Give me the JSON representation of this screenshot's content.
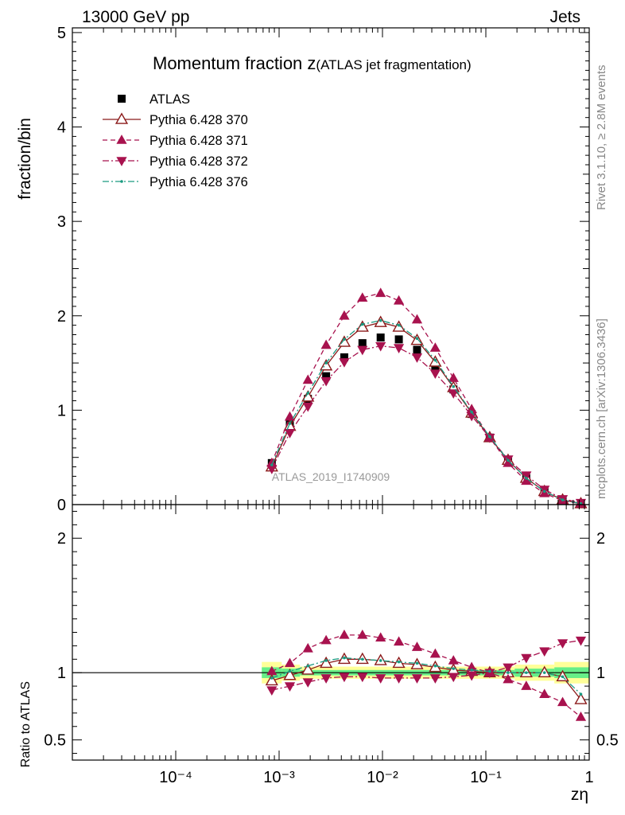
{
  "header": {
    "energy_label": "13000 GeV pp",
    "category_label": "Jets"
  },
  "side_text": {
    "rivet": "Rivet 3.1.10, ≥ 2.8M events",
    "mcplots": "mcplots.cern.ch [arXiv:1306.3436]"
  },
  "watermark": "ATLAS_2019_I1740909",
  "chart_data": [
    {
      "type": "scatter",
      "panel": "main",
      "title_main": "Momentum fraction z",
      "title_sub": "(ATLAS jet fragmentation)",
      "ylabel": "fraction/bin",
      "xscale": "log",
      "ylim": [
        0,
        5.05
      ],
      "yticks": [
        0,
        1,
        2,
        3,
        4,
        5
      ],
      "legend_position": "top-left",
      "x": [
        0.00085,
        0.00127,
        0.0019,
        0.00285,
        0.00427,
        0.0064,
        0.0096,
        0.0144,
        0.0216,
        0.0324,
        0.0486,
        0.0729,
        0.109,
        0.164,
        0.246,
        0.369,
        0.553,
        0.83
      ],
      "series": [
        {
          "name": "ATLAS",
          "style": "data",
          "color": "#000000",
          "marker": "square",
          "values": [
            0.44,
            0.85,
            1.12,
            1.36,
            1.56,
            1.71,
            1.77,
            1.75,
            1.64,
            1.45,
            1.22,
            0.96,
            0.71,
            0.47,
            0.28,
            0.14,
            0.05,
            0.01
          ]
        },
        {
          "name": "Pythia 6.428 370",
          "style": "solid",
          "color": "#8b1a1a",
          "marker": "open-triangle-up",
          "values": [
            0.4,
            0.83,
            1.14,
            1.47,
            1.72,
            1.88,
            1.93,
            1.88,
            1.74,
            1.51,
            1.24,
            0.97,
            0.71,
            0.47,
            0.28,
            0.14,
            0.05,
            0.01
          ]
        },
        {
          "name": "Pythia 6.428 371",
          "style": "dashed",
          "color": "#a8124e",
          "marker": "filled-triangle-up",
          "values": [
            0.44,
            0.93,
            1.32,
            1.69,
            2.0,
            2.19,
            2.24,
            2.16,
            1.96,
            1.66,
            1.34,
            1.01,
            0.71,
            0.44,
            0.25,
            0.12,
            0.04,
            0.01
          ]
        },
        {
          "name": "Pythia 6.428 372",
          "style": "dashdot",
          "color": "#a8124e",
          "marker": "filled-triangle-down",
          "values": [
            0.38,
            0.76,
            1.04,
            1.31,
            1.51,
            1.64,
            1.68,
            1.66,
            1.56,
            1.39,
            1.18,
            0.94,
            0.71,
            0.48,
            0.31,
            0.16,
            0.06,
            0.02
          ]
        },
        {
          "name": "Pythia 6.428 376",
          "style": "dashdot",
          "color": "#1a9a80",
          "marker": "dot",
          "values": [
            0.42,
            0.86,
            1.18,
            1.5,
            1.75,
            1.91,
            1.95,
            1.9,
            1.76,
            1.53,
            1.25,
            0.98,
            0.72,
            0.47,
            0.28,
            0.14,
            0.05,
            0.01
          ]
        }
      ]
    },
    {
      "type": "scatter",
      "panel": "ratio",
      "ylabel": "Ratio to ATLAS",
      "xlabel": "zη",
      "xscale": "log",
      "xlim": [
        1e-05,
        1
      ],
      "ylim": [
        0.35,
        2.25
      ],
      "yticks": [
        0.5,
        1,
        2
      ],
      "xtick_labels": [
        "10⁻⁴",
        "10⁻³",
        "10⁻²",
        "10⁻¹",
        "1"
      ],
      "reference_line": 1,
      "band_colors": {
        "outer": "#ffff99",
        "inner": "#66ee88"
      },
      "band_outer": [
        [
          0.00068,
          0.00106,
          0.08
        ],
        [
          0.00106,
          0.00159,
          0.06
        ],
        [
          0.00159,
          0.19,
          0.045
        ],
        [
          0.19,
          0.46,
          0.06
        ],
        [
          0.46,
          1,
          0.08
        ]
      ],
      "band_inner": [
        [
          0.00068,
          0.00106,
          0.04
        ],
        [
          0.00106,
          0.00159,
          0.03
        ],
        [
          0.00159,
          0.19,
          0.02
        ],
        [
          0.19,
          0.46,
          0.03
        ],
        [
          0.46,
          1,
          0.04
        ]
      ],
      "x": [
        0.00085,
        0.00127,
        0.0019,
        0.00285,
        0.00427,
        0.0064,
        0.0096,
        0.0144,
        0.0216,
        0.0324,
        0.0486,
        0.0729,
        0.109,
        0.164,
        0.246,
        0.369,
        0.553,
        0.83
      ],
      "series": [
        {
          "name": "Pythia 6.428 370",
          "style": "solid",
          "color": "#8b1a1a",
          "marker": "open-triangle-up",
          "values": [
            0.94,
            0.98,
            1.02,
            1.07,
            1.1,
            1.1,
            1.09,
            1.07,
            1.06,
            1.04,
            1.02,
            1.01,
            1.0,
            1.0,
            1.0,
            1.0,
            0.97,
            0.8
          ]
        },
        {
          "name": "Pythia 6.428 371",
          "style": "dashed",
          "color": "#a8124e",
          "marker": "filled-triangle-up",
          "values": [
            1.01,
            1.07,
            1.18,
            1.24,
            1.28,
            1.28,
            1.26,
            1.23,
            1.19,
            1.14,
            1.09,
            1.04,
            1.0,
            0.95,
            0.9,
            0.84,
            0.78,
            0.67
          ]
        },
        {
          "name": "Pythia 6.428 372",
          "style": "dashdot",
          "color": "#a8124e",
          "marker": "filled-triangle-down",
          "values": [
            0.87,
            0.9,
            0.93,
            0.96,
            0.97,
            0.97,
            0.96,
            0.96,
            0.96,
            0.96,
            0.97,
            0.98,
            1.0,
            1.04,
            1.11,
            1.16,
            1.22,
            1.24
          ]
        },
        {
          "name": "Pythia 6.428 376",
          "style": "dashdot",
          "color": "#1a9a80",
          "marker": "dot",
          "values": [
            0.96,
            1.01,
            1.05,
            1.09,
            1.11,
            1.1,
            1.09,
            1.08,
            1.07,
            1.05,
            1.03,
            1.02,
            1.01,
            1.0,
            1.0,
            1.0,
            0.97,
            0.84
          ]
        }
      ]
    }
  ]
}
